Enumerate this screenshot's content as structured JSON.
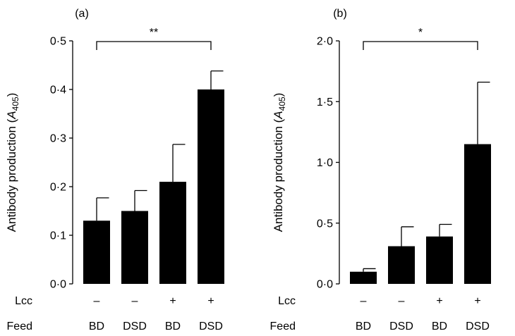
{
  "chart_data": [
    {
      "type": "bar",
      "panel_label": "(a)",
      "ylabel": "Antibody production (A405)",
      "ylabel_main": "Antibody production (",
      "ylabel_var": "A",
      "ylabel_sub": "405",
      "ylabel_close": ")",
      "ylim": [
        0,
        0.5
      ],
      "yticks": [
        0,
        0.1,
        0.2,
        0.3,
        0.4,
        0.5
      ],
      "ytick_labels": [
        "0·0",
        "0·1",
        "0·2",
        "0·3",
        "0·4",
        "0·5"
      ],
      "categories": [
        "BD",
        "DSD",
        "BD",
        "DSD"
      ],
      "lcc": [
        "–",
        "–",
        "+",
        "+"
      ],
      "values": [
        0.13,
        0.15,
        0.21,
        0.4
      ],
      "error_upper": [
        0.177,
        0.192,
        0.287,
        0.438
      ],
      "significance": {
        "from": 0,
        "to": 3,
        "label": "**"
      },
      "grid": false,
      "bar_color": "#000000"
    },
    {
      "type": "bar",
      "panel_label": "(b)",
      "ylabel": "Antibody production (A405)",
      "ylabel_main": "Antibody production (",
      "ylabel_var": "A",
      "ylabel_sub": "405",
      "ylabel_close": ")",
      "ylim": [
        0,
        2.0
      ],
      "yticks": [
        0,
        0.5,
        1.0,
        1.5,
        2.0
      ],
      "ytick_labels": [
        "0·0",
        "0·5",
        "1·0",
        "1·5",
        "2·0"
      ],
      "categories": [
        "BD",
        "DSD",
        "BD",
        "DSD"
      ],
      "lcc": [
        "–",
        "–",
        "+",
        "+"
      ],
      "values": [
        0.1,
        0.31,
        0.39,
        1.15
      ],
      "error_upper": [
        0.125,
        0.47,
        0.49,
        1.66
      ],
      "significance": {
        "from": 0,
        "to": 3,
        "label": "*"
      },
      "grid": false,
      "bar_color": "#000000"
    }
  ],
  "row_labels": {
    "lcc": "Lcc",
    "feed": "Feed"
  }
}
